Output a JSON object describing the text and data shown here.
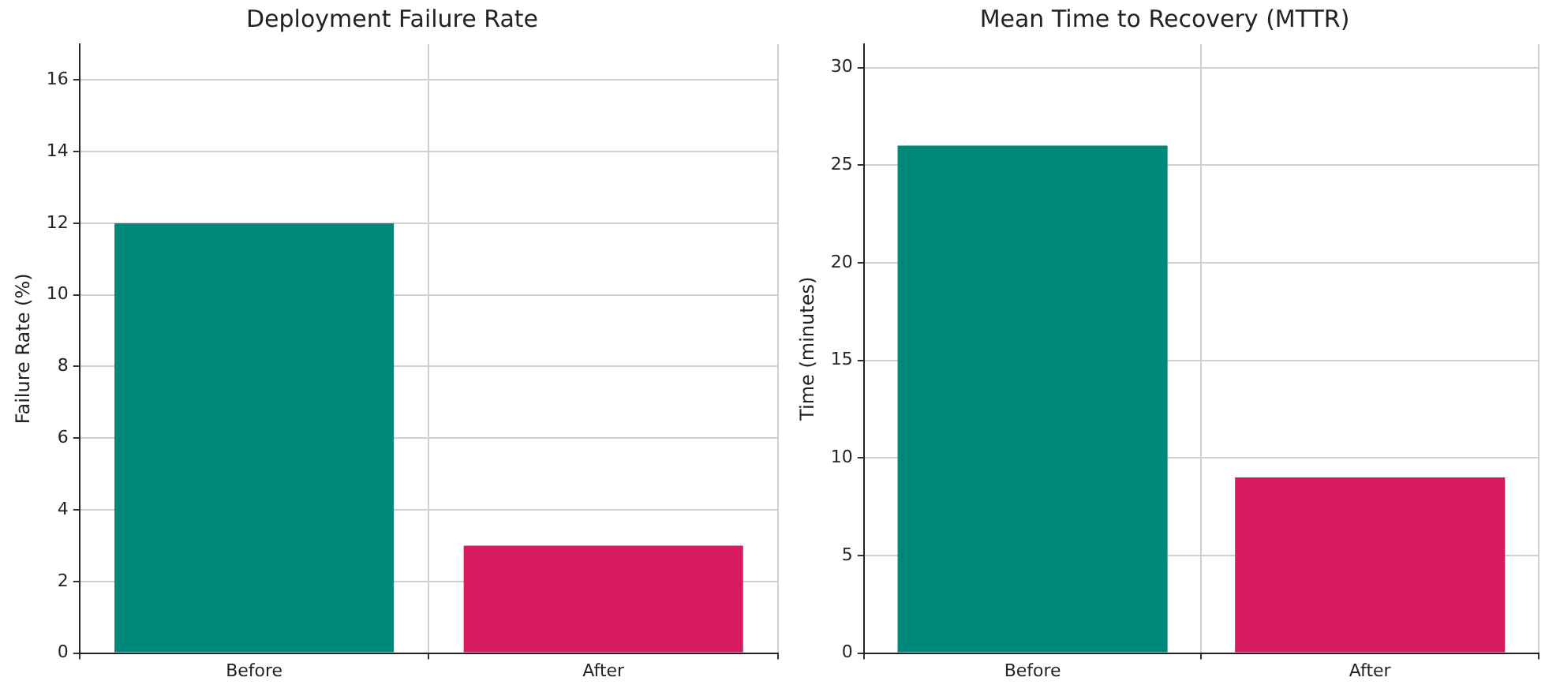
{
  "chart_data": [
    {
      "type": "bar",
      "title": "Deployment Failure Rate",
      "ylabel": "Failure Rate (%)",
      "categories": [
        "Before",
        "After"
      ],
      "values": [
        12,
        3
      ],
      "colors": [
        "#00897b",
        "#d81b60"
      ],
      "ylim": [
        0,
        17
      ],
      "yticks": [
        0,
        2,
        4,
        6,
        8,
        10,
        12,
        14,
        16
      ],
      "grid": true
    },
    {
      "type": "bar",
      "title": "Mean Time to Recovery (MTTR)",
      "ylabel": "Time (minutes)",
      "categories": [
        "Before",
        "After"
      ],
      "values": [
        26,
        9
      ],
      "colors": [
        "#00897b",
        "#d81b60"
      ],
      "ylim": [
        0,
        31.2
      ],
      "yticks": [
        0,
        5,
        10,
        15,
        20,
        25,
        30
      ],
      "grid": true
    }
  ]
}
